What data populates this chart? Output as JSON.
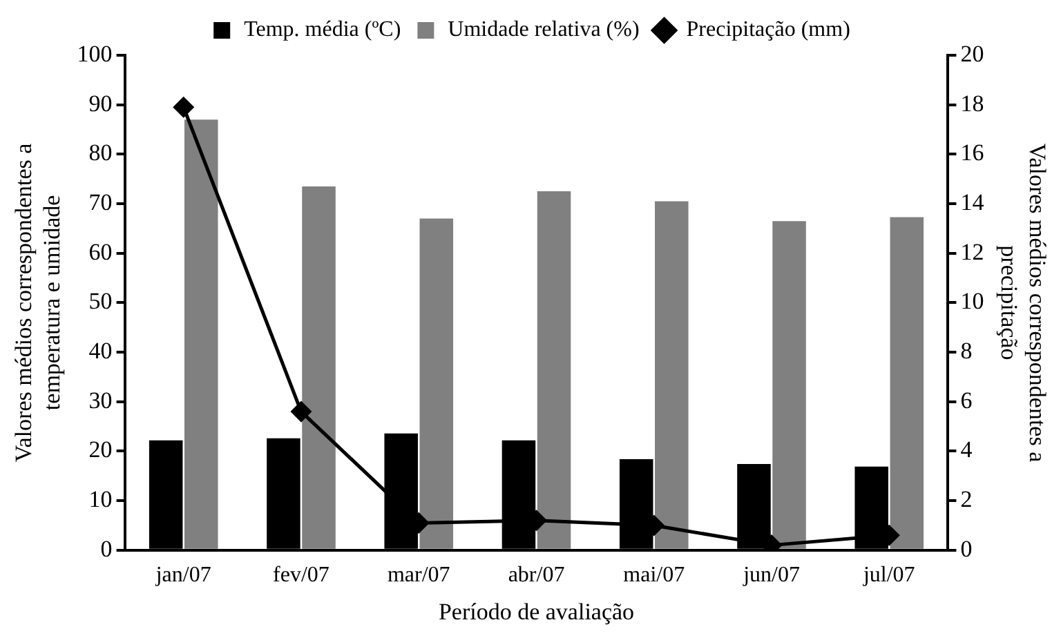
{
  "chart_data": {
    "type": "bar",
    "xlabel": "Período de avaliação",
    "ylabel": "Valores médios correspondentes a\ntemperatura e umidade",
    "y2label": "Valores médios correspondentes a\nprecipitação",
    "categories": [
      "jan/07",
      "fev/07",
      "mar/07",
      "abr/07",
      "mai/07",
      "jun/07",
      "jul/07"
    ],
    "series": [
      {
        "name": "Temp. média (ºC)",
        "color": "#000000",
        "values": [
          22.2,
          22.6,
          23.6,
          22.2,
          18.4,
          17.4,
          16.9
        ]
      },
      {
        "name": "Umidade relativa (%)",
        "color": "#808080",
        "values": [
          87,
          73.5,
          67,
          72.5,
          70.5,
          66.5,
          67.3
        ]
      },
      {
        "name": "Precipitação (mm)",
        "type": "line",
        "axis": "y2",
        "color": "#000000",
        "marker": "diamond",
        "line_style": "solid",
        "values": [
          17.9,
          5.6,
          1.1,
          1.2,
          1.0,
          0.2,
          0.6
        ]
      }
    ],
    "ylim": [
      0,
      100
    ],
    "yticks": [
      0,
      10,
      20,
      30,
      40,
      50,
      60,
      70,
      80,
      90,
      100
    ],
    "y2lim": [
      0,
      20
    ],
    "y2ticks": [
      0,
      2,
      4,
      6,
      8,
      10,
      12,
      14,
      16,
      18,
      20
    ],
    "grid": false,
    "legend": "top"
  }
}
